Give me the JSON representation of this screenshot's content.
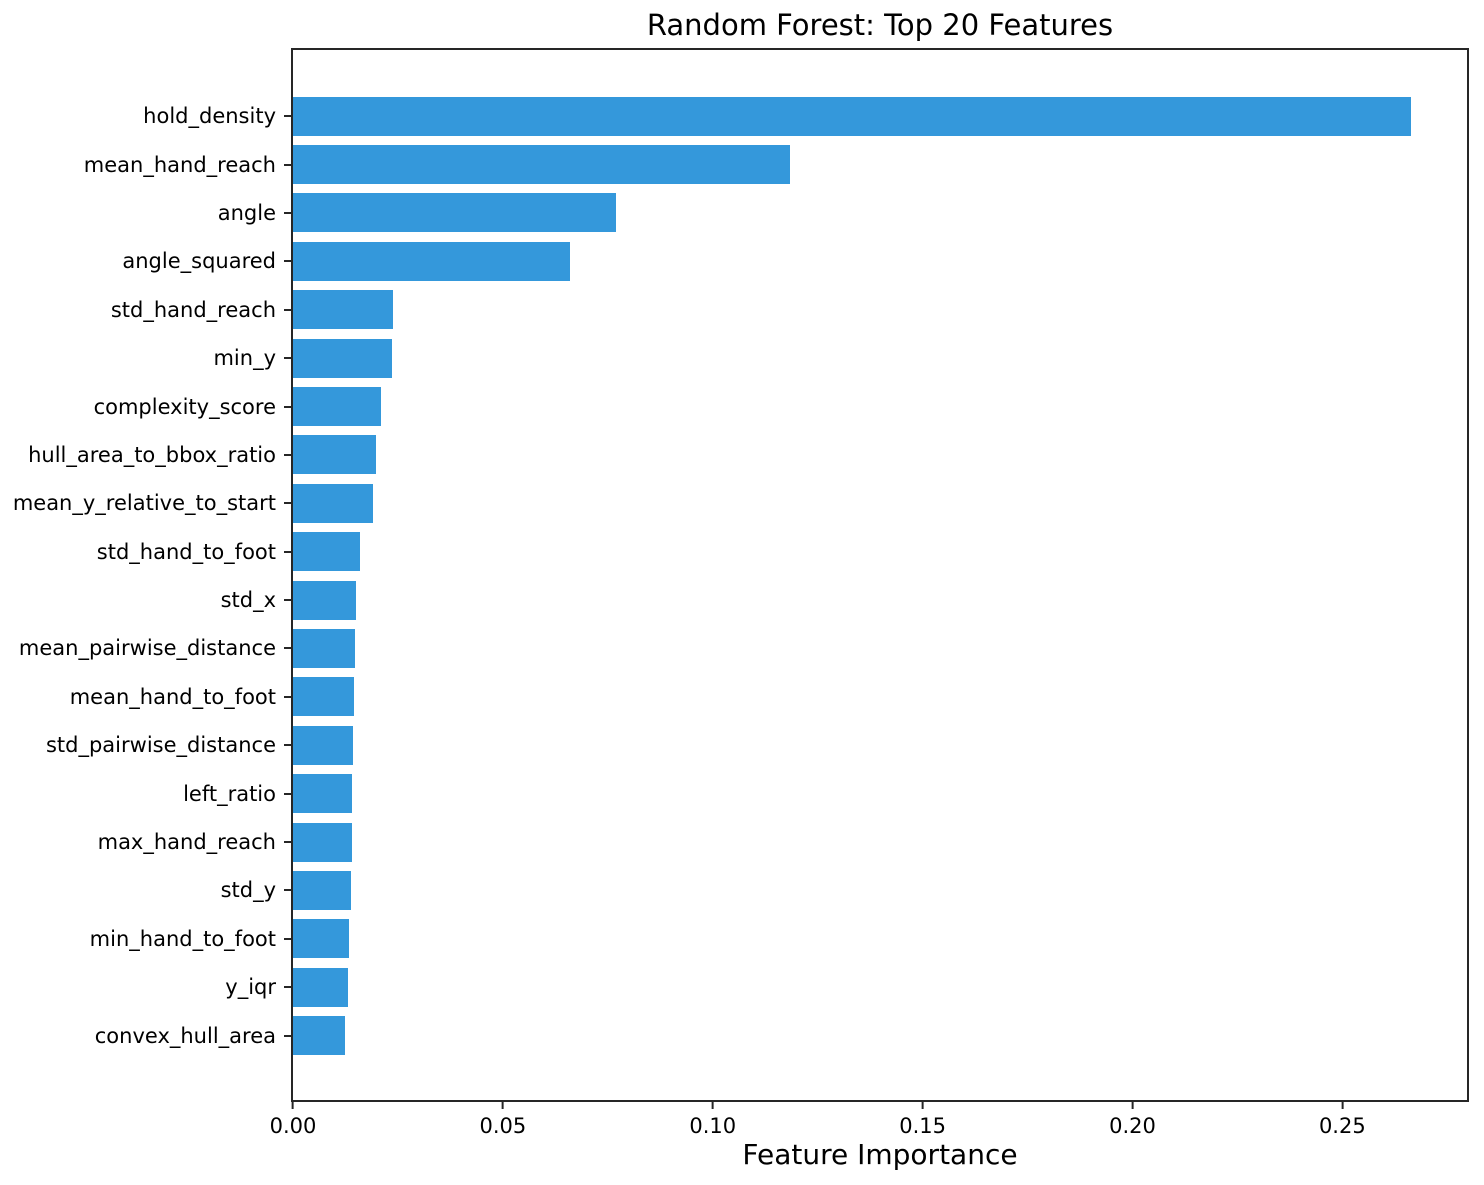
{
  "chart_data": {
    "type": "bar",
    "orientation": "horizontal",
    "title": "Random Forest: Top 20 Features",
    "xlabel": "Feature Importance",
    "ylabel": "",
    "categories": [
      "hold_density",
      "mean_hand_reach",
      "angle",
      "angle_squared",
      "std_hand_reach",
      "min_y",
      "complexity_score",
      "hull_area_to_bbox_ratio",
      "mean_y_relative_to_start",
      "std_hand_to_foot",
      "std_x",
      "mean_pairwise_distance",
      "mean_hand_to_foot",
      "std_pairwise_distance",
      "left_ratio",
      "max_hand_reach",
      "std_y",
      "min_hand_to_foot",
      "y_iqr",
      "convex_hull_area"
    ],
    "values": [
      0.2663,
      0.1185,
      0.077,
      0.0661,
      0.0238,
      0.0235,
      0.0209,
      0.0198,
      0.019,
      0.016,
      0.015,
      0.0148,
      0.0145,
      0.0143,
      0.014,
      0.014,
      0.0138,
      0.0133,
      0.0131,
      0.0123
    ],
    "xlim": [
      0,
      0.2797
    ],
    "xticks": [
      0.0,
      0.05,
      0.1,
      0.15,
      0.2,
      0.25
    ],
    "xtick_labels": [
      "0.00",
      "0.05",
      "0.10",
      "0.15",
      "0.20",
      "0.25"
    ],
    "bar_color": "#3498db",
    "axis_color": "#262626",
    "grid": false,
    "legend": null
  }
}
